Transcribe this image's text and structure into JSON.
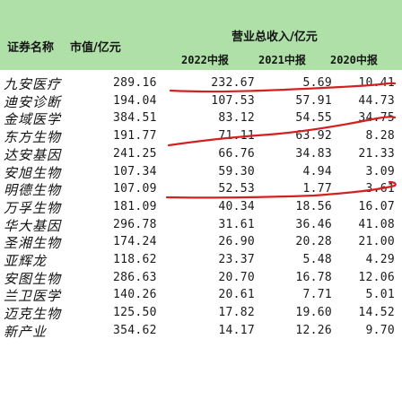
{
  "header": {
    "name_label": "证券名称",
    "mcap_label": "市值/亿元",
    "revenue_label": "营业总收入/亿元",
    "years": [
      "2022中报",
      "2021中报",
      "2020中报"
    ]
  },
  "colors": {
    "header_bg": "#aee0a8",
    "pen": "#d42020"
  },
  "rows": [
    {
      "name": "九安医疗",
      "mcap": "289.16",
      "r2022": "232.67",
      "r2021": "5.69",
      "r2020": "10.41"
    },
    {
      "name": "迪安诊断",
      "mcap": "194.04",
      "r2022": "107.53",
      "r2021": "57.91",
      "r2020": "44.73"
    },
    {
      "name": "金域医学",
      "mcap": "384.51",
      "r2022": "83.12",
      "r2021": "54.55",
      "r2020": "34.75"
    },
    {
      "name": "东方生物",
      "mcap": "191.77",
      "r2022": "71.11",
      "r2021": "63.92",
      "r2020": "8.28"
    },
    {
      "name": "达安基因",
      "mcap": "241.25",
      "r2022": "66.76",
      "r2021": "34.83",
      "r2020": "21.33"
    },
    {
      "name": "安旭生物",
      "mcap": "107.34",
      "r2022": "59.30",
      "r2021": "4.94",
      "r2020": "3.09"
    },
    {
      "name": "明德生物",
      "mcap": "107.09",
      "r2022": "52.53",
      "r2021": "1.77",
      "r2020": "3.61"
    },
    {
      "name": "万孚生物",
      "mcap": "181.09",
      "r2022": "40.34",
      "r2021": "18.56",
      "r2020": "16.07"
    },
    {
      "name": "华大基因",
      "mcap": "296.78",
      "r2022": "31.61",
      "r2021": "36.46",
      "r2020": "41.08"
    },
    {
      "name": "圣湘生物",
      "mcap": "174.24",
      "r2022": "26.90",
      "r2021": "20.28",
      "r2020": "21.00"
    },
    {
      "name": "亚辉龙",
      "mcap": "118.62",
      "r2022": "23.37",
      "r2021": "5.48",
      "r2020": "4.29"
    },
    {
      "name": "安图生物",
      "mcap": "286.63",
      "r2022": "20.70",
      "r2021": "16.78",
      "r2020": "12.06"
    },
    {
      "name": "兰卫医学",
      "mcap": "140.26",
      "r2022": "20.61",
      "r2021": "7.71",
      "r2020": "5.01"
    },
    {
      "name": "迈克生物",
      "mcap": "125.50",
      "r2022": "17.82",
      "r2021": "19.60",
      "r2020": "14.52"
    },
    {
      "name": "新产业",
      "mcap": "354.62",
      "r2022": "14.17",
      "r2021": "12.26",
      "r2020": "9.70"
    }
  ]
}
